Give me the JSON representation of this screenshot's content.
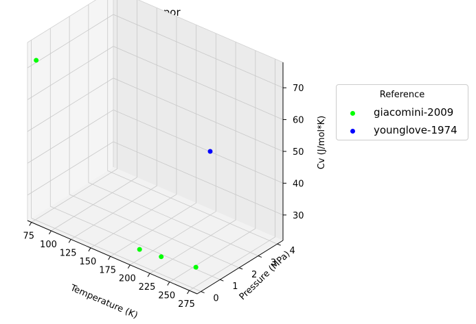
{
  "chart_data": {
    "type": "scatter",
    "projection": "3d",
    "title": "Cv - vapor",
    "xlabel": "Temperature (K)",
    "ylabel": "Pressure (MPa)",
    "zlabel": "Cv (J/mol*K)",
    "x_ticks": [
      "75",
      "100",
      "125",
      "150",
      "175",
      "200",
      "225",
      "250",
      "275"
    ],
    "y_ticks": [
      "0",
      "1",
      "2",
      "3",
      "4"
    ],
    "z_ticks": [
      "30",
      "40",
      "50",
      "60",
      "70"
    ],
    "xlim": [
      70,
      285
    ],
    "ylim": [
      -0.2,
      4.3
    ],
    "zlim": [
      22,
      78
    ],
    "grid": true,
    "legend_title": "Reference",
    "legend_position": "outside-right",
    "series": [
      {
        "name": "giacomini-2009",
        "color": "#00ff00",
        "points": [
          {
            "x": 75,
            "y": 0.05,
            "z": 72
          },
          {
            "x": 200,
            "y": 0.3,
            "z": 25
          },
          {
            "x": 225,
            "y": 0.4,
            "z": 25
          },
          {
            "x": 275,
            "y": 0.15,
            "z": 28
          }
        ]
      },
      {
        "name": "younglove-1974",
        "color": "#0000ff",
        "points": [
          {
            "x": 200,
            "y": 4.0,
            "z": 42
          }
        ]
      }
    ]
  }
}
